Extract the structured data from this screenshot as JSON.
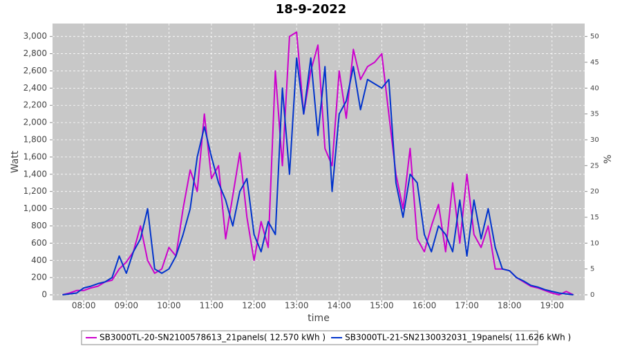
{
  "chart_data": {
    "type": "line",
    "title": "18-9-2022",
    "x_label": "time",
    "y_label": "Watt",
    "y2_label": "%",
    "grid": true,
    "legend": "bottom",
    "x": [
      "07:30",
      "07:40",
      "07:50",
      "08:00",
      "08:10",
      "08:20",
      "08:30",
      "08:40",
      "08:50",
      "09:00",
      "09:10",
      "09:20",
      "09:30",
      "09:40",
      "09:50",
      "10:00",
      "10:10",
      "10:20",
      "10:30",
      "10:40",
      "10:50",
      "11:00",
      "11:10",
      "11:20",
      "11:30",
      "11:40",
      "11:50",
      "12:00",
      "12:10",
      "12:20",
      "12:30",
      "12:40",
      "12:50",
      "13:00",
      "13:10",
      "13:20",
      "13:30",
      "13:40",
      "13:50",
      "14:00",
      "14:10",
      "14:20",
      "14:30",
      "14:40",
      "14:50",
      "15:00",
      "15:10",
      "15:20",
      "15:30",
      "15:40",
      "15:50",
      "16:00",
      "16:10",
      "16:20",
      "16:30",
      "16:40",
      "16:50",
      "17:00",
      "17:10",
      "17:20",
      "17:30",
      "17:40",
      "17:50",
      "18:00",
      "18:10",
      "18:20",
      "18:30",
      "18:40",
      "18:50",
      "19:00",
      "19:10",
      "19:20",
      "19:30"
    ],
    "xlim": [
      "07:16",
      "19:46"
    ],
    "xticks": [
      "08:00",
      "09:00",
      "10:00",
      "11:00",
      "12:00",
      "13:00",
      "14:00",
      "15:00",
      "16:00",
      "17:00",
      "18:00",
      "19:00"
    ],
    "ylim": [
      -64,
      3150
    ],
    "yticks": [
      0,
      200,
      400,
      600,
      800,
      {
        "value": 1000,
        "label": "1,000"
      },
      {
        "value": 1200,
        "label": "1,200"
      },
      {
        "value": 1400,
        "label": "1,400"
      },
      {
        "value": 1600,
        "label": "1,600"
      },
      {
        "value": 1800,
        "label": "1,800"
      },
      {
        "value": 2000,
        "label": "2,000"
      },
      {
        "value": 2200,
        "label": "2,200"
      },
      {
        "value": 2400,
        "label": "2,400"
      },
      {
        "value": 2600,
        "label": "2,600"
      },
      {
        "value": 2800,
        "label": "2,800"
      },
      {
        "value": 3000,
        "label": "3,000"
      }
    ],
    "y2lim": [
      -1.07,
      52.5
    ],
    "y2ticks": [
      0,
      5,
      10,
      15,
      20,
      25,
      30,
      35,
      40,
      45,
      50
    ],
    "series": [
      {
        "name": "SB3000TL-20-SN2100578613_21panels( 12.570 kWh )",
        "color": "#cc00cc",
        "values": [
          0,
          20,
          50,
          50,
          80,
          100,
          150,
          170,
          300,
          380,
          500,
          800,
          400,
          250,
          300,
          550,
          450,
          1000,
          1450,
          1200,
          2100,
          1350,
          1500,
          650,
          1150,
          1650,
          900,
          400,
          850,
          550,
          2600,
          1500,
          3000,
          3050,
          2100,
          2600,
          2900,
          1700,
          1500,
          2600,
          2050,
          2850,
          2500,
          2650,
          2700,
          2800,
          2100,
          1400,
          1000,
          1700,
          650,
          500,
          800,
          1050,
          500,
          1300,
          600,
          1400,
          700,
          550,
          800,
          300,
          300,
          280,
          200,
          150,
          100,
          80,
          50,
          20,
          0,
          40,
          0
        ]
      },
      {
        "name": "SB3000TL-21-SN2130032031_19panels( 11.626 kWh )",
        "color": "#0033cc",
        "values": [
          0,
          10,
          20,
          80,
          100,
          130,
          150,
          200,
          450,
          250,
          500,
          650,
          1000,
          300,
          250,
          300,
          450,
          700,
          1000,
          1600,
          1950,
          1600,
          1300,
          1100,
          800,
          1200,
          1350,
          700,
          500,
          850,
          700,
          2400,
          1400,
          2750,
          2100,
          2750,
          1850,
          2650,
          1200,
          2100,
          2250,
          2650,
          2150,
          2500,
          2450,
          2400,
          2500,
          1300,
          900,
          1400,
          1300,
          700,
          500,
          800,
          700,
          500,
          1100,
          450,
          1100,
          650,
          1000,
          550,
          300,
          280,
          200,
          160,
          110,
          90,
          60,
          40,
          20,
          10,
          0
        ]
      }
    ]
  }
}
